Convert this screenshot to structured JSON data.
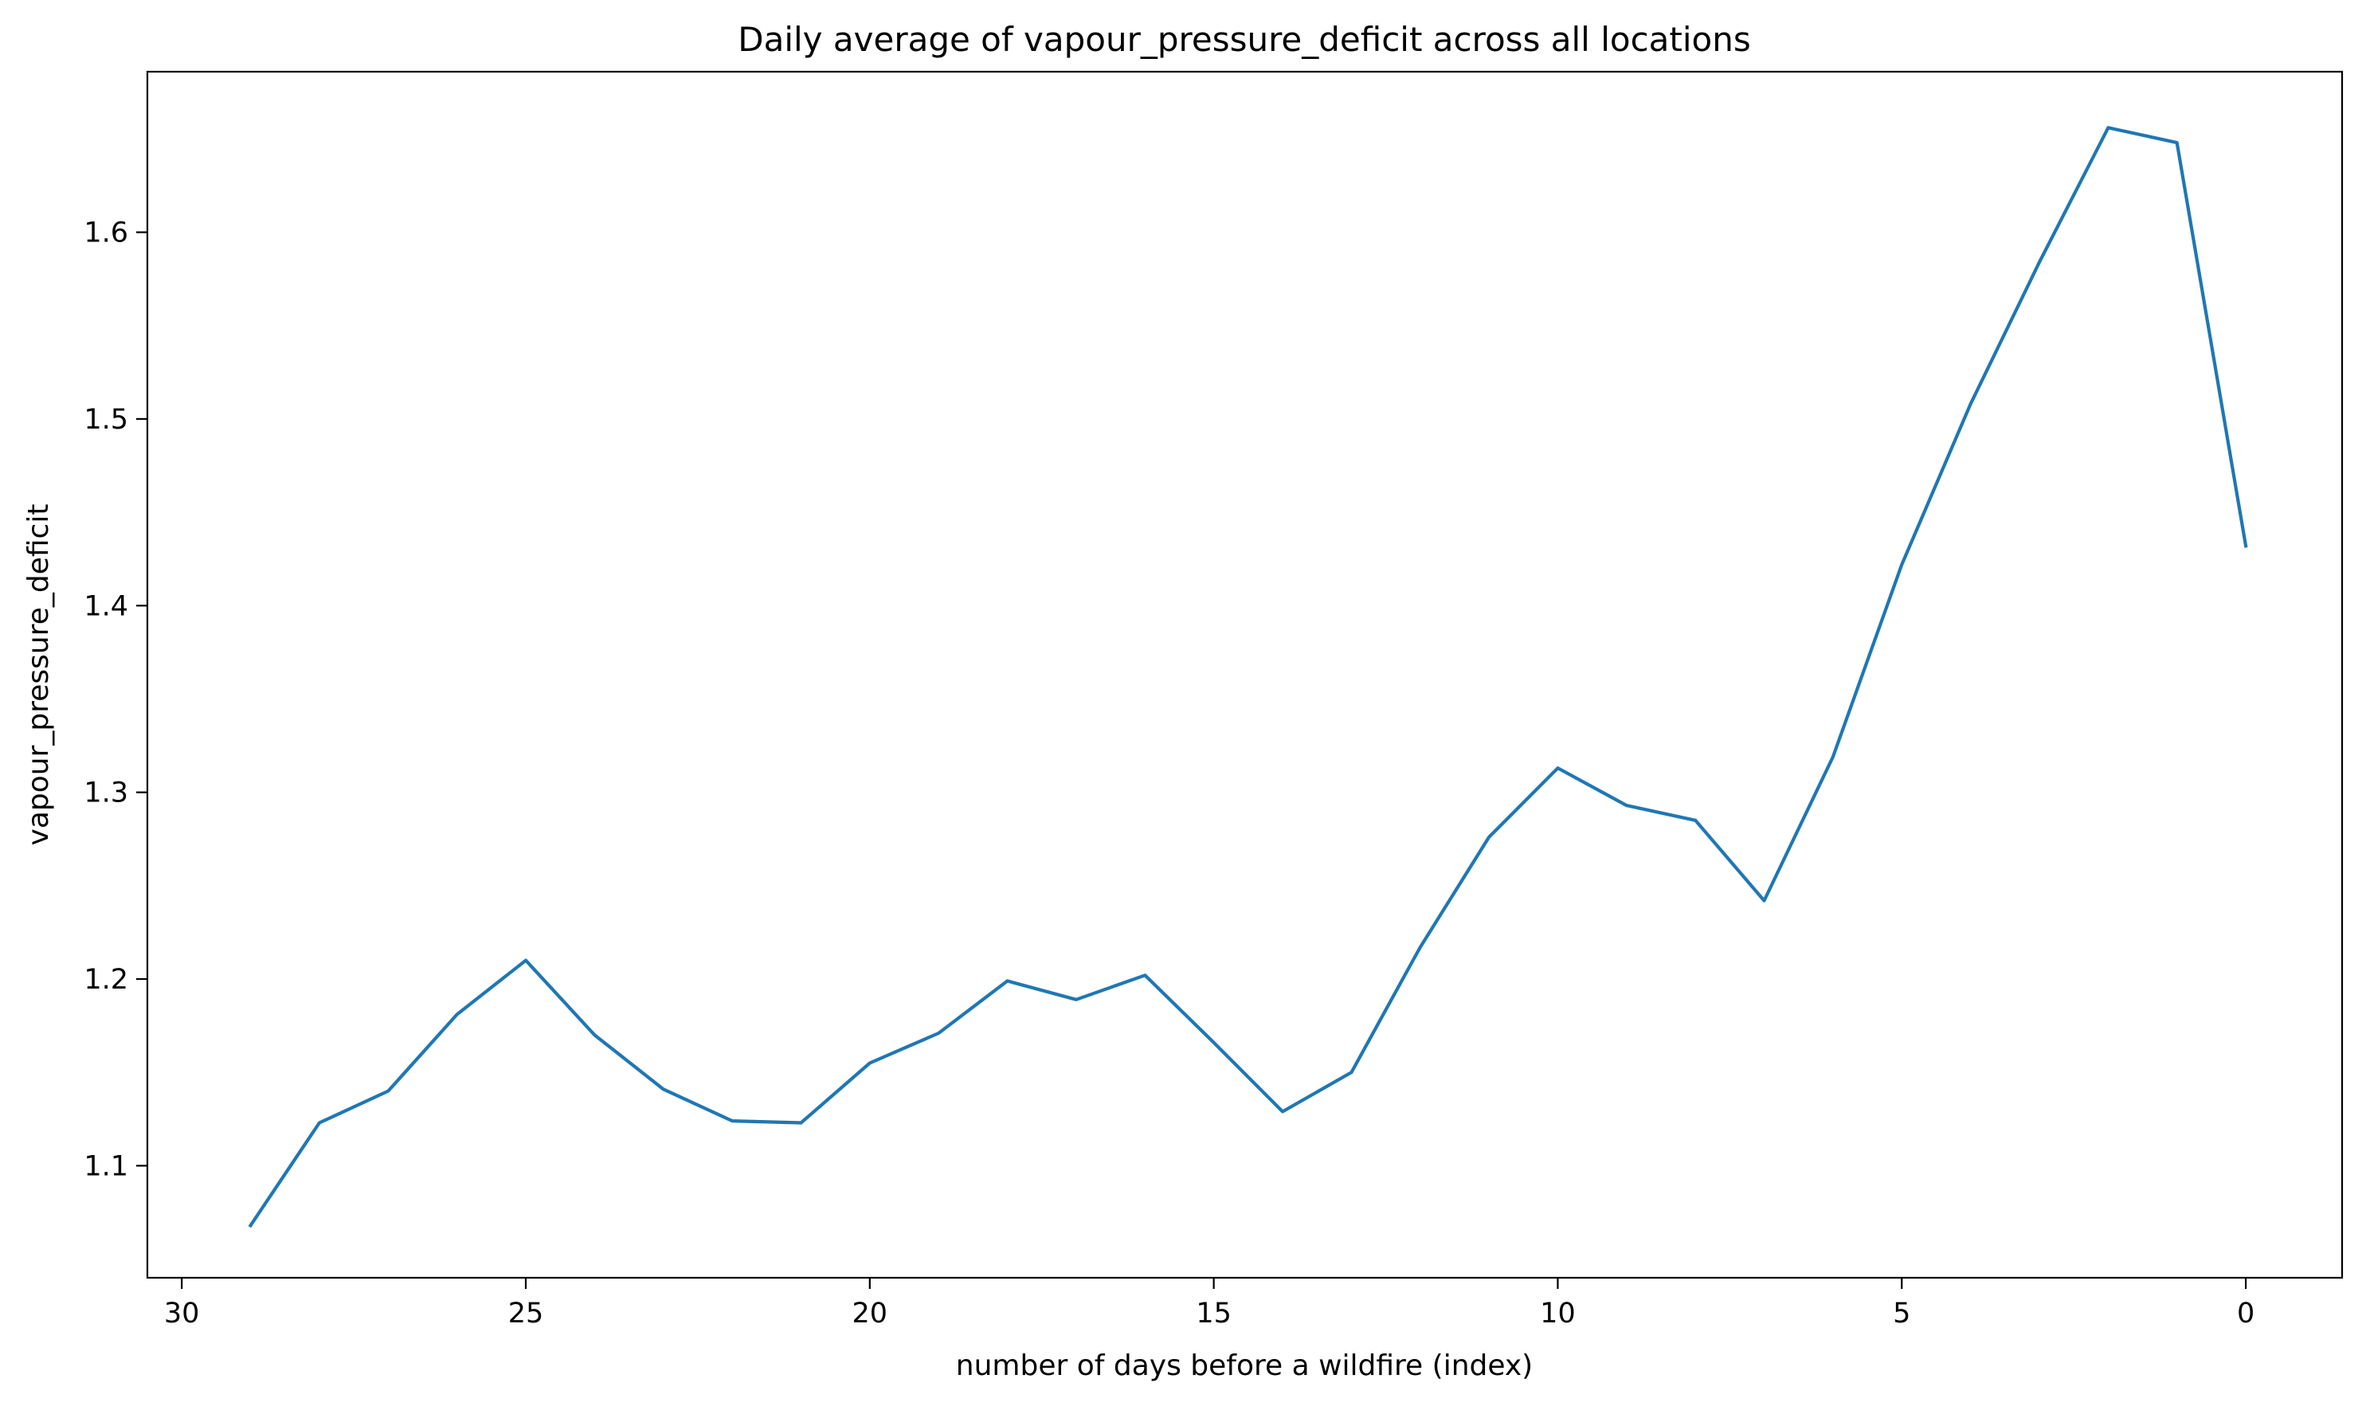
{
  "chart_data": {
    "type": "line",
    "title": "Daily average of vapour_pressure_deficit across all locations",
    "xlabel": "number of days before a wildfire (index)",
    "ylabel": "vapour_pressure_deficit",
    "xlim": [
      30.5,
      -1.4
    ],
    "ylim": [
      1.04,
      1.686
    ],
    "x_reversed": true,
    "grid": false,
    "x_ticks": [
      30,
      25,
      20,
      15,
      10,
      5,
      0
    ],
    "y_ticks": [
      1.1,
      1.2,
      1.3,
      1.4,
      1.5,
      1.6
    ],
    "y_tick_labels": [
      "1.1",
      "1.2",
      "1.3",
      "1.4",
      "1.5",
      "1.6"
    ],
    "series": [
      {
        "color": "#1f77b4",
        "x": [
          29,
          28,
          27,
          26,
          25,
          24,
          23,
          22,
          21,
          20,
          19,
          18,
          17,
          16,
          15,
          14,
          13,
          12,
          11,
          10,
          9,
          8,
          7,
          6,
          5,
          4,
          3,
          2,
          1,
          0
        ],
        "values": [
          1.068,
          1.123,
          1.14,
          1.181,
          1.21,
          1.17,
          1.141,
          1.124,
          1.123,
          1.155,
          1.171,
          1.199,
          1.189,
          1.202,
          1.166,
          1.129,
          1.15,
          1.217,
          1.276,
          1.313,
          1.293,
          1.285,
          1.242,
          1.319,
          1.422,
          1.508,
          1.584,
          1.656,
          1.648,
          1.432
        ]
      }
    ]
  }
}
